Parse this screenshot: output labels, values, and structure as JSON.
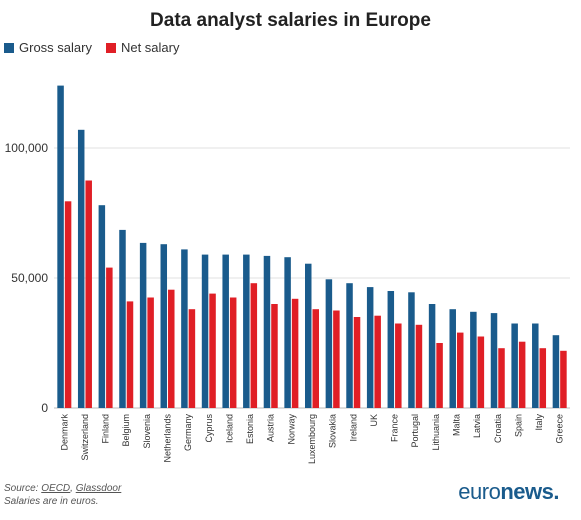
{
  "chart_data": {
    "type": "bar",
    "title": "Data analyst salaries in Europe",
    "categories": [
      "Denmark",
      "Switzerland",
      "Finland",
      "Belgium",
      "Slovenia",
      "Netherlands",
      "Germany",
      "Cyprus",
      "Iceland",
      "Estonia",
      "Austria",
      "Norway",
      "Luxembourg",
      "Slovakia",
      "Ireland",
      "UK",
      "France",
      "Portugal",
      "Lithuania",
      "Malta",
      "Latvia",
      "Croatia",
      "Spain",
      "Italy",
      "Greece"
    ],
    "series": [
      {
        "name": "Gross salary",
        "color": "#1a5b8c",
        "values": [
          124000,
          107000,
          78000,
          68500,
          63500,
          63000,
          61000,
          59000,
          59000,
          59000,
          58500,
          58000,
          55500,
          49500,
          48000,
          46500,
          45000,
          44500,
          40000,
          38000,
          37000,
          36500,
          32500,
          32500,
          28000
        ]
      },
      {
        "name": "Net salary",
        "color": "#e01f26",
        "values": [
          79500,
          87500,
          54000,
          41000,
          42500,
          45500,
          38000,
          44000,
          42500,
          48000,
          40000,
          42000,
          38000,
          37500,
          35000,
          35500,
          32500,
          32000,
          25000,
          29000,
          27500,
          23000,
          25500,
          23000,
          22000
        ]
      }
    ],
    "yticks": [
      0,
      50000,
      100000
    ],
    "ytick_labels": [
      "0",
      "50,000",
      "100,000"
    ],
    "ylim": [
      0,
      130000
    ],
    "grid": true,
    "legend_position": "top-left"
  },
  "footer": {
    "source_prefix": "Source: ",
    "source_1": "OECD",
    "source_sep": ", ",
    "source_2": "Glassdoor",
    "note": "Salaries are in euros."
  },
  "brand": {
    "part1": "euro",
    "part2": "news",
    "dot": "."
  }
}
